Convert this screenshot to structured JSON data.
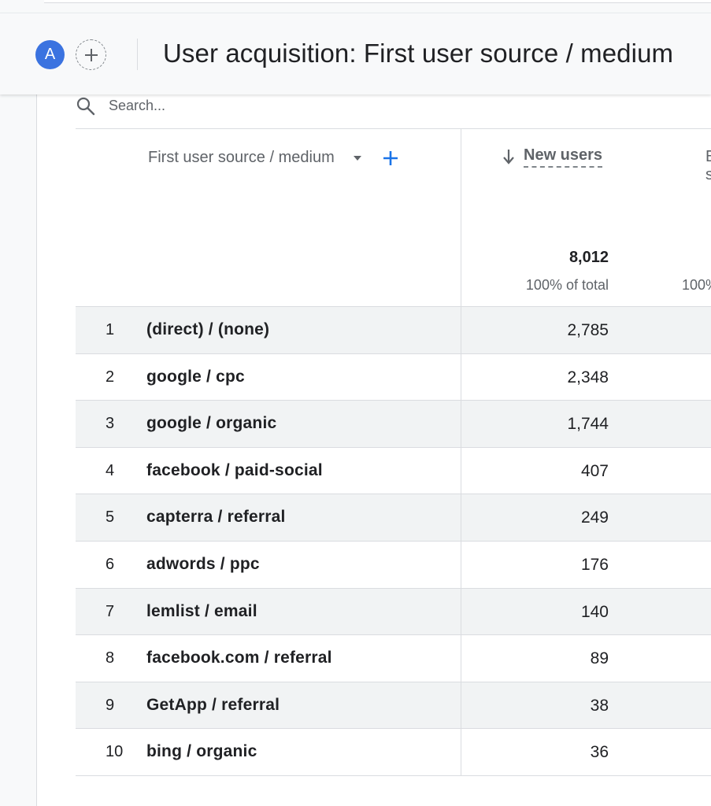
{
  "header": {
    "avatar_letter": "A",
    "title": "User acquisition: First user source / medium"
  },
  "search": {
    "placeholder": "Search..."
  },
  "table": {
    "dimension_label": "First user source / medium",
    "metric_label": "New users",
    "next_metric_label_partial": "E\ns",
    "total_value": "8,012",
    "total_pct": "100% of total",
    "next_total_pct_partial": "100%",
    "rows": [
      {
        "rank": "1",
        "dimension": "(direct) / (none)",
        "value": "2,785"
      },
      {
        "rank": "2",
        "dimension": "google / cpc",
        "value": "2,348"
      },
      {
        "rank": "3",
        "dimension": "google / organic",
        "value": "1,744"
      },
      {
        "rank": "4",
        "dimension": "facebook / paid-social",
        "value": "407"
      },
      {
        "rank": "5",
        "dimension": "capterra / referral",
        "value": "249"
      },
      {
        "rank": "6",
        "dimension": "adwords / ppc",
        "value": "176"
      },
      {
        "rank": "7",
        "dimension": "lemlist / email",
        "value": "140"
      },
      {
        "rank": "8",
        "dimension": "facebook.com / referral",
        "value": "89"
      },
      {
        "rank": "9",
        "dimension": "GetApp / referral",
        "value": "38"
      },
      {
        "rank": "10",
        "dimension": "bing / organic",
        "value": "36"
      }
    ]
  },
  "colors": {
    "avatar": "#3b73e0",
    "accent": "#1a73e8",
    "row_shade": "#f1f3f4"
  },
  "icons": {
    "search": "search-icon",
    "add_compare": "plus-circle-icon",
    "dropdown": "caret-down-icon",
    "add_dimension": "plus-icon",
    "sort": "arrow-down-icon"
  }
}
